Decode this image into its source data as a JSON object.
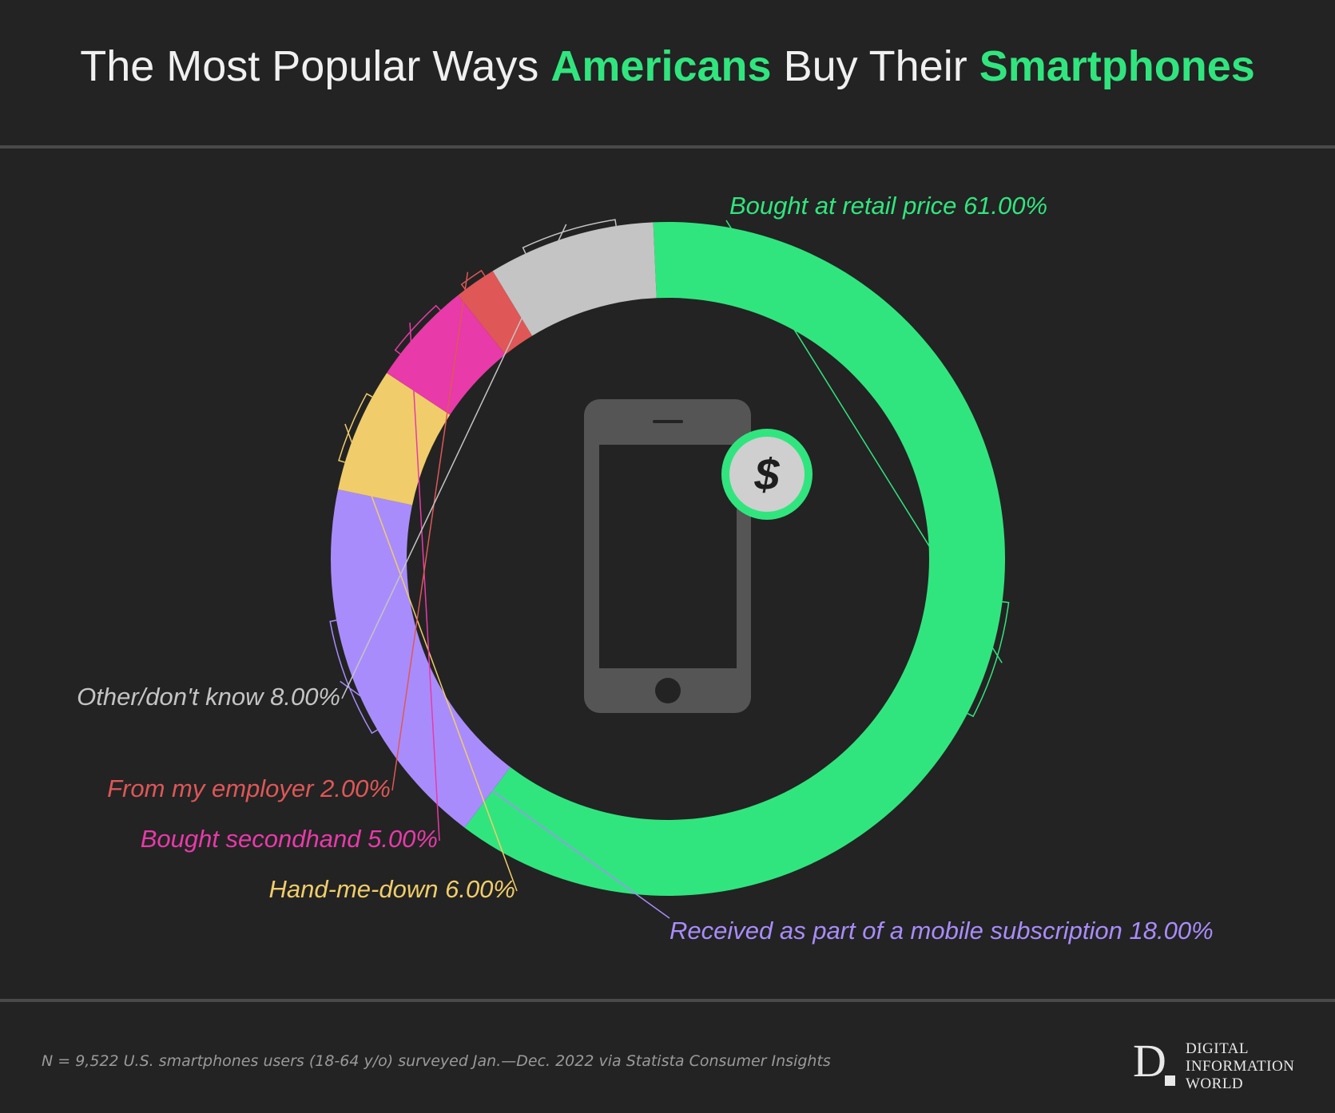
{
  "title": {
    "part1": "The Most Popular Ways ",
    "highlight1": "Americans",
    "part2": " Buy Their ",
    "highlight2": "Smartphones"
  },
  "chart_data": {
    "type": "pie",
    "variant": "donut",
    "title": "The Most Popular Ways Americans Buy Their Smartphones",
    "slices": [
      {
        "label": "Bought at retail price",
        "value": 61.0,
        "display": "Bought at retail price 61.00%",
        "color": "#31e57e"
      },
      {
        "label": "Received as part of a mobile subscription",
        "value": 18.0,
        "display": "Received as part of a mobile subscription 18.00%",
        "color": "#a98cfb"
      },
      {
        "label": "Hand-me-down",
        "value": 6.0,
        "display": "Hand-me-down 6.00%",
        "color": "#f0cd6a"
      },
      {
        "label": "Bought secondhand",
        "value": 5.0,
        "display": "Bought secondhand 5.00%",
        "color": "#e83aa9"
      },
      {
        "label": "From my employer",
        "value": 2.0,
        "display": "From my employer 2.00%",
        "color": "#df5757"
      },
      {
        "label": "Other/don't know",
        "value": 8.0,
        "display": "Other/don't know 8.00%",
        "color": "#c4c4c4"
      }
    ]
  },
  "center_icon": {
    "name": "smartphone-dollar-icon",
    "badge_text": "$",
    "badge_color": "#31e57e"
  },
  "footnote": "N = 9,522 U.S. smartphones users (18-64 y/o) surveyed Jan.—Dec. 2022 via Statista Consumer Insights",
  "logo": {
    "letter": "D",
    "line1": "DIGITAL",
    "line2": "INFORMATION",
    "line3": "WORLD"
  }
}
